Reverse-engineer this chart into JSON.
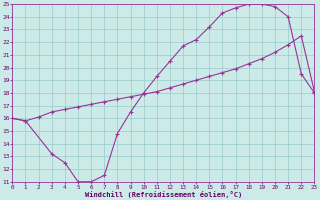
{
  "xlabel": "Windchill (Refroidissement éolien,°C)",
  "xlim": [
    0,
    23
  ],
  "ylim": [
    11,
    25
  ],
  "xticks": [
    0,
    1,
    2,
    3,
    4,
    5,
    6,
    7,
    8,
    9,
    10,
    11,
    12,
    13,
    14,
    15,
    16,
    17,
    18,
    19,
    20,
    21,
    22,
    23
  ],
  "yticks": [
    11,
    12,
    13,
    14,
    15,
    16,
    17,
    18,
    19,
    20,
    21,
    22,
    23,
    24,
    25
  ],
  "line1_x": [
    0,
    1,
    3,
    4,
    5,
    6,
    7,
    8,
    9,
    10,
    11,
    12,
    13,
    14,
    15,
    16,
    17,
    18,
    19,
    20,
    21,
    22,
    23
  ],
  "line1_y": [
    16.0,
    15.8,
    13.2,
    12.5,
    11.0,
    11.0,
    11.5,
    14.8,
    16.5,
    18.0,
    19.3,
    20.5,
    21.7,
    22.2,
    23.2,
    24.3,
    24.7,
    25.0,
    25.0,
    24.8,
    24.0,
    19.5,
    18.0
  ],
  "line2_x": [
    0,
    1,
    2,
    3,
    4,
    5,
    6,
    7,
    8,
    9,
    10,
    11,
    12,
    13,
    14,
    15,
    16,
    17,
    18,
    19,
    20,
    21,
    22,
    23
  ],
  "line2_y": [
    16.0,
    15.8,
    16.1,
    16.5,
    16.7,
    16.9,
    17.1,
    17.3,
    17.5,
    17.7,
    17.9,
    18.1,
    18.4,
    18.7,
    19.0,
    19.3,
    19.6,
    19.9,
    20.3,
    20.7,
    21.2,
    21.8,
    22.5,
    18.1
  ],
  "line_color": "#993399",
  "bg_color": "#cceae7",
  "grid_color": "#99cccc",
  "text_color": "#660066",
  "border_color": "#993399"
}
